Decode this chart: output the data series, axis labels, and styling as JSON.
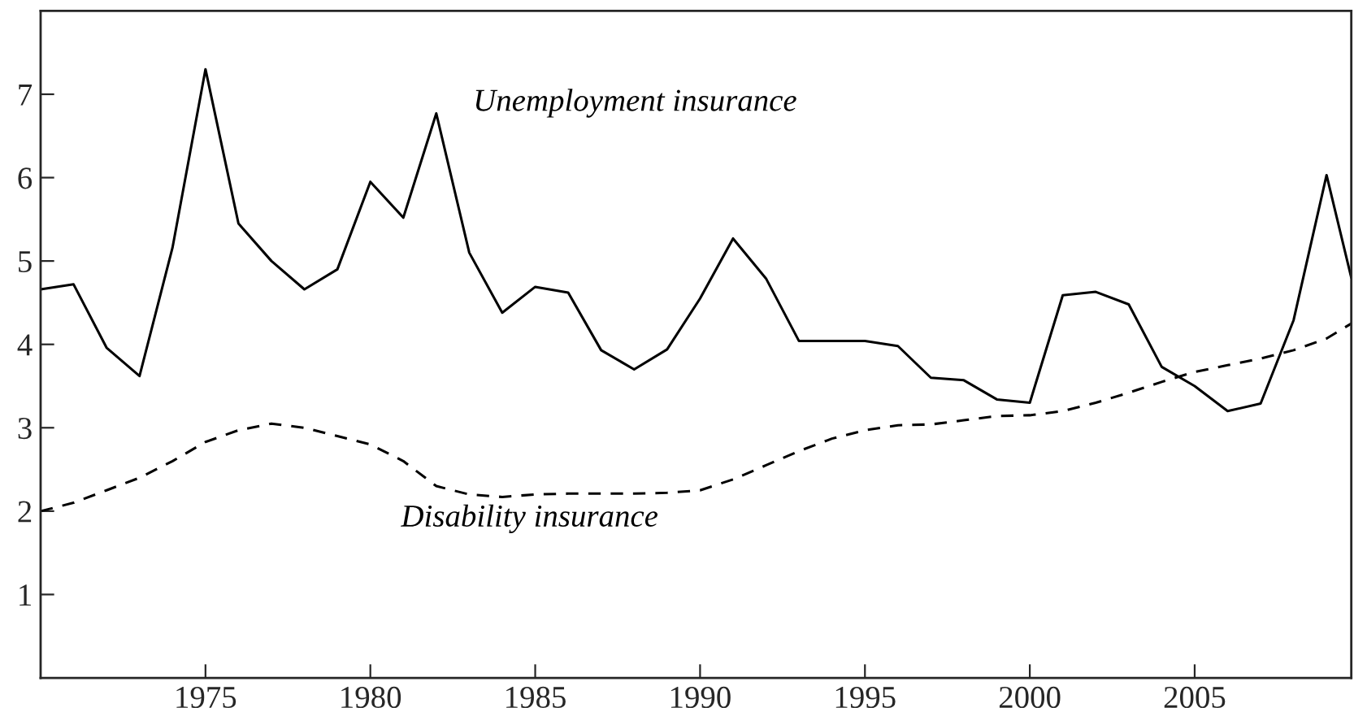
{
  "chart_data": {
    "type": "line",
    "x": [
      1970,
      1971,
      1972,
      1973,
      1974,
      1975,
      1976,
      1977,
      1978,
      1979,
      1980,
      1981,
      1982,
      1983,
      1984,
      1985,
      1986,
      1987,
      1988,
      1989,
      1990,
      1991,
      1992,
      1993,
      1994,
      1995,
      1996,
      1997,
      1998,
      1999,
      2000,
      2001,
      2002,
      2003,
      2004,
      2005,
      2006,
      2007,
      2008,
      2009,
      2009.75
    ],
    "series": [
      {
        "name": "Unemployment insurance",
        "color": "#000000",
        "line_style": "solid",
        "values": [
          4.66,
          4.72,
          3.96,
          3.62,
          5.16,
          7.3,
          5.45,
          5.0,
          4.66,
          4.9,
          5.95,
          5.52,
          6.77,
          5.1,
          4.38,
          4.69,
          4.62,
          3.93,
          3.7,
          3.94,
          4.55,
          5.27,
          4.79,
          4.04,
          4.04,
          4.04,
          3.98,
          3.6,
          3.57,
          3.34,
          3.3,
          4.59,
          4.63,
          4.48,
          3.73,
          3.5,
          3.2,
          3.29,
          4.29,
          6.03,
          4.8
        ]
      },
      {
        "name": "Disability insurance",
        "color": "#000000",
        "line_style": "dashed",
        "values": [
          2.0,
          2.1,
          2.25,
          2.4,
          2.6,
          2.83,
          2.97,
          3.05,
          3.0,
          2.9,
          2.8,
          2.6,
          2.3,
          2.2,
          2.17,
          2.2,
          2.21,
          2.21,
          2.21,
          2.22,
          2.25,
          2.38,
          2.55,
          2.72,
          2.87,
          2.97,
          3.03,
          3.04,
          3.09,
          3.14,
          3.15,
          3.2,
          3.3,
          3.42,
          3.55,
          3.67,
          3.75,
          3.83,
          3.93,
          4.07,
          4.25
        ]
      }
    ],
    "xlim": [
      1970,
      2009.75
    ],
    "ylim": [
      0,
      8
    ],
    "xticks": [
      1975,
      1980,
      1985,
      1990,
      1995,
      2000,
      2005
    ],
    "yticks": [
      1,
      2,
      3,
      4,
      5,
      6,
      7
    ],
    "grid": false,
    "legend": false,
    "marker": "none"
  }
}
